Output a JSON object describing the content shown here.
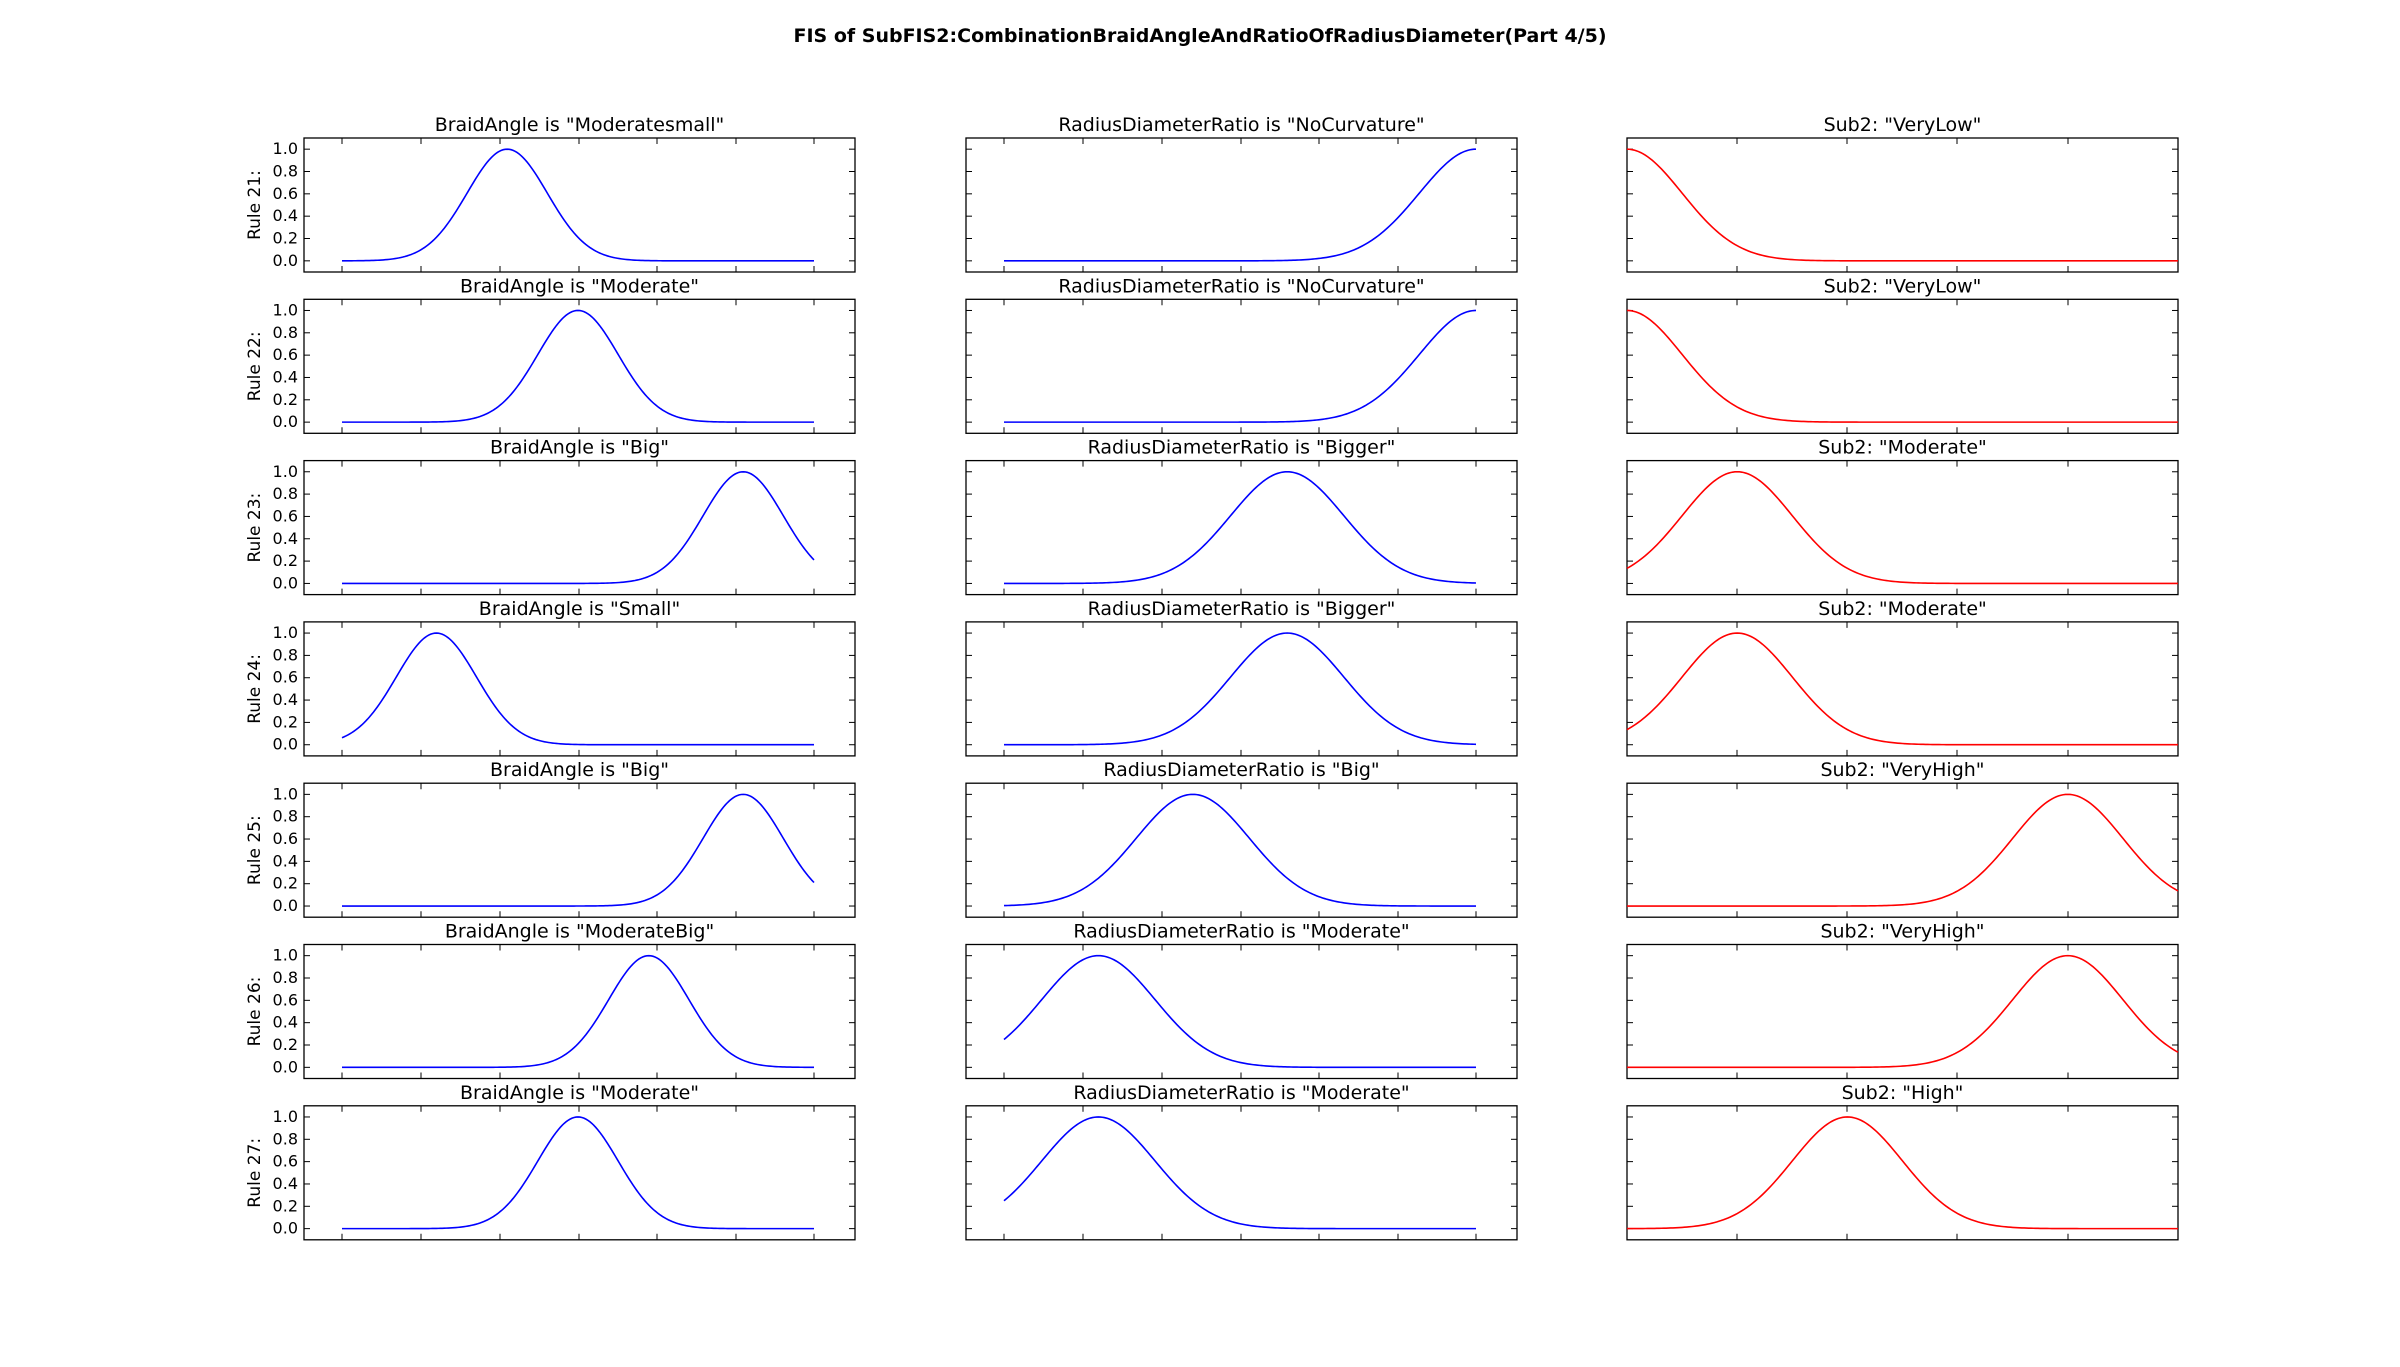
{
  "figure_title": "FIS of SubFIS2:CombinationBraidAngleAndRatioOfRadiusDiameter(Part 4/5)",
  "colors": {
    "input": "#0000ff",
    "output": "#ff0000",
    "axes": "#000000"
  },
  "chart_data": {
    "type": "line",
    "grid": false,
    "ylim": [
      -0.1,
      1.1
    ],
    "yticks": [
      "0.0",
      "0.2",
      "0.4",
      "0.6",
      "0.8",
      "1.0"
    ],
    "columns": [
      "BraidAngle",
      "RadiusDiameterRatio",
      "Sub2"
    ],
    "rules": [
      {
        "label": "Rule 21:",
        "panels": [
          {
            "title": "BraidAngle is \"Moderatesmall\"",
            "role": "input",
            "mean": 0.35,
            "sigma": 0.085,
            "xrange": [
              0.0,
              1.0
            ]
          },
          {
            "title": "RadiusDiameterRatio is \"NoCurvature\"",
            "role": "input",
            "mean": 1.0,
            "sigma": 0.12,
            "xrange": [
              0.0,
              1.0
            ]
          },
          {
            "title": "Sub2: \"VeryLow\"",
            "role": "output",
            "mean": 0.0,
            "sigma": 0.1,
            "xrange": [
              0.0,
              1.0
            ]
          }
        ]
      },
      {
        "label": "Rule 22:",
        "panels": [
          {
            "title": "BraidAngle is \"Moderate\"",
            "role": "input",
            "mean": 0.5,
            "sigma": 0.085,
            "xrange": [
              0.0,
              1.0
            ]
          },
          {
            "title": "RadiusDiameterRatio is \"NoCurvature\"",
            "role": "input",
            "mean": 1.0,
            "sigma": 0.12,
            "xrange": [
              0.0,
              1.0
            ]
          },
          {
            "title": "Sub2: \"VeryLow\"",
            "role": "output",
            "mean": 0.0,
            "sigma": 0.1,
            "xrange": [
              0.0,
              1.0
            ]
          }
        ]
      },
      {
        "label": "Rule 23:",
        "panels": [
          {
            "title": "BraidAngle is \"Big\"",
            "role": "input",
            "mean": 0.85,
            "sigma": 0.085,
            "xrange": [
              0.0,
              1.0
            ]
          },
          {
            "title": "RadiusDiameterRatio is \"Bigger\"",
            "role": "input",
            "mean": 0.6,
            "sigma": 0.12,
            "xrange": [
              0.0,
              1.0
            ]
          },
          {
            "title": "Sub2: \"Moderate\"",
            "role": "output",
            "mean": 0.2,
            "sigma": 0.1,
            "xrange": [
              0.0,
              1.0
            ]
          }
        ]
      },
      {
        "label": "Rule 24:",
        "panels": [
          {
            "title": "BraidAngle is \"Small\"",
            "role": "input",
            "mean": 0.2,
            "sigma": 0.085,
            "xrange": [
              0.0,
              1.0
            ]
          },
          {
            "title": "RadiusDiameterRatio is \"Bigger\"",
            "role": "input",
            "mean": 0.6,
            "sigma": 0.12,
            "xrange": [
              0.0,
              1.0
            ]
          },
          {
            "title": "Sub2: \"Moderate\"",
            "role": "output",
            "mean": 0.2,
            "sigma": 0.1,
            "xrange": [
              0.0,
              1.0
            ]
          }
        ]
      },
      {
        "label": "Rule 25:",
        "panels": [
          {
            "title": "BraidAngle is \"Big\"",
            "role": "input",
            "mean": 0.85,
            "sigma": 0.085,
            "xrange": [
              0.0,
              1.0
            ]
          },
          {
            "title": "RadiusDiameterRatio is \"Big\"",
            "role": "input",
            "mean": 0.4,
            "sigma": 0.12,
            "xrange": [
              0.0,
              1.0
            ]
          },
          {
            "title": "Sub2: \"VeryHigh\"",
            "role": "output",
            "mean": 0.8,
            "sigma": 0.1,
            "xrange": [
              0.0,
              1.0
            ]
          }
        ]
      },
      {
        "label": "Rule 26:",
        "panels": [
          {
            "title": "BraidAngle is \"ModerateBig\"",
            "role": "input",
            "mean": 0.65,
            "sigma": 0.085,
            "xrange": [
              0.0,
              1.0
            ]
          },
          {
            "title": "RadiusDiameterRatio is \"Moderate\"",
            "role": "input",
            "mean": 0.2,
            "sigma": 0.12,
            "xrange": [
              0.0,
              1.0
            ]
          },
          {
            "title": "Sub2: \"VeryHigh\"",
            "role": "output",
            "mean": 0.8,
            "sigma": 0.1,
            "xrange": [
              0.0,
              1.0
            ]
          }
        ]
      },
      {
        "label": "Rule 27:",
        "panels": [
          {
            "title": "BraidAngle is \"Moderate\"",
            "role": "input",
            "mean": 0.5,
            "sigma": 0.085,
            "xrange": [
              0.0,
              1.0
            ]
          },
          {
            "title": "RadiusDiameterRatio is \"Moderate\"",
            "role": "input",
            "mean": 0.2,
            "sigma": 0.12,
            "xrange": [
              0.0,
              1.0
            ]
          },
          {
            "title": "Sub2: \"High\"",
            "role": "output",
            "mean": 0.4,
            "sigma": 0.1,
            "xrange": [
              0.0,
              1.0
            ]
          }
        ]
      }
    ]
  }
}
